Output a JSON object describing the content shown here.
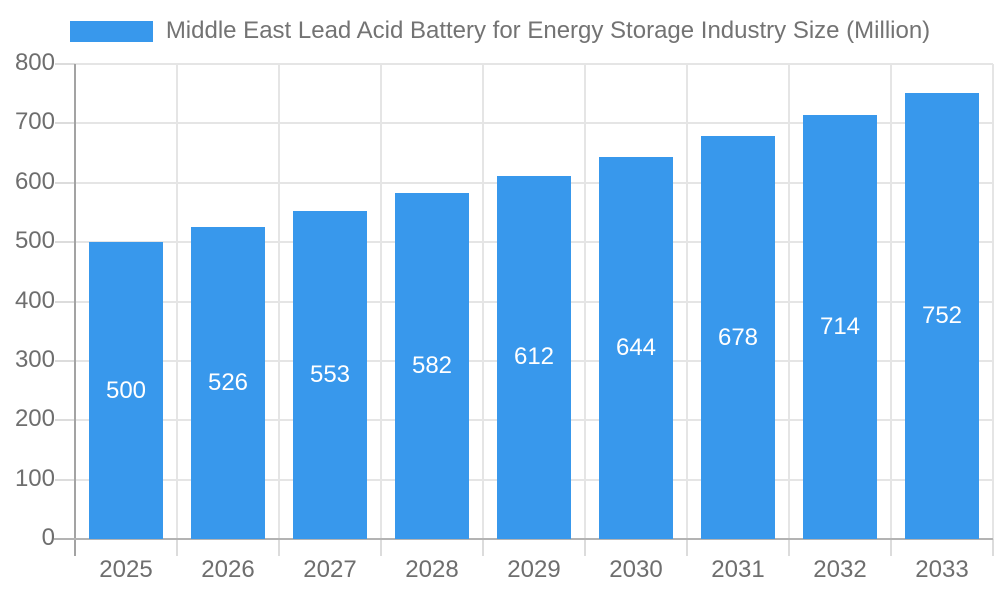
{
  "chart_data": {
    "type": "bar",
    "title": "Middle East Lead Acid Battery for Energy Storage Industry Size (Million)",
    "categories": [
      "2025",
      "2026",
      "2027",
      "2028",
      "2029",
      "2030",
      "2031",
      "2032",
      "2033"
    ],
    "values": [
      500,
      526,
      553,
      582,
      612,
      644,
      678,
      714,
      752
    ],
    "series_name": "Middle East Lead Acid Battery for Energy Storage Industry Size (Million)",
    "xlabel": "",
    "ylabel": "",
    "ylim": [
      0,
      800
    ],
    "ytick_step": 100,
    "ytick_labels": [
      "0",
      "100",
      "200",
      "300",
      "400",
      "500",
      "600",
      "700",
      "800"
    ],
    "grid": true,
    "legend_position": "top",
    "value_labels_inside_bars": true,
    "colors": {
      "bar": "#3898EC",
      "bar_value_text": "#ffffff",
      "title_text": "#737373",
      "axis_text": "#6e6e6e",
      "gridline": "#e5e5e5",
      "y_axis_line": "#a3a3a3",
      "x_axis_line": "#b3b3b3",
      "tick": "#dcdcdc",
      "background": "#ffffff"
    }
  }
}
